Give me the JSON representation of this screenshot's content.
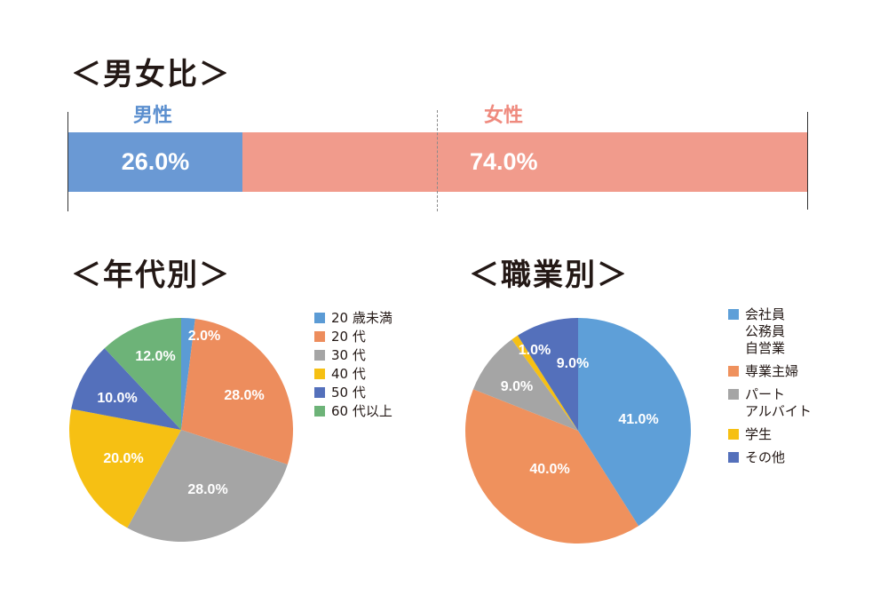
{
  "headings": {
    "gender": "＜男女比＞",
    "age": "＜年代別＞",
    "job": "＜職業別＞"
  },
  "chart_data": [
    {
      "type": "bar",
      "orientation": "horizontal-stacked",
      "series": [
        {
          "name": "男性",
          "value": 26.0,
          "label": "26.0%",
          "color": "#6a99d4"
        },
        {
          "name": "女性",
          "value": 74.0,
          "label": "74.0%",
          "color": "#f19b8c"
        }
      ],
      "xlim": [
        0,
        100
      ]
    },
    {
      "type": "pie",
      "start_angle_deg": 0,
      "direction": "clockwise",
      "slices": [
        {
          "name": "20 歳未満",
          "value": 2.0,
          "label": "2.0%",
          "color": "#5b9bd5"
        },
        {
          "name": "20 代",
          "value": 28.0,
          "label": "28.0%",
          "color": "#ed8d5d"
        },
        {
          "name": "30 代",
          "value": 28.0,
          "label": "28.0%",
          "color": "#a5a5a5"
        },
        {
          "name": "40 代",
          "value": 20.0,
          "label": "20.0%",
          "color": "#f6c013"
        },
        {
          "name": "50 代",
          "value": 10.0,
          "label": "10.0%",
          "color": "#5470bb"
        },
        {
          "name": "60 代以上",
          "value": 12.0,
          "label": "12.0%",
          "color": "#6db378"
        }
      ]
    },
    {
      "type": "pie",
      "start_angle_deg": 0,
      "direction": "clockwise",
      "slices": [
        {
          "name": "会社員\n公務員\n自営業",
          "value": 41.0,
          "label": "41.0%",
          "color": "#5e9fd8"
        },
        {
          "name": "専業主婦",
          "value": 40.0,
          "label": "40.0%",
          "color": "#ef915d"
        },
        {
          "name": "パート\nアルバイト",
          "value": 9.0,
          "label": "9.0%",
          "color": "#a5a5a5"
        },
        {
          "name": "学生",
          "value": 1.0,
          "label": "1.0%",
          "color": "#f6c013"
        },
        {
          "name": "その他",
          "value": 9.0,
          "label": "9.0%",
          "color": "#5470bb"
        }
      ]
    }
  ]
}
